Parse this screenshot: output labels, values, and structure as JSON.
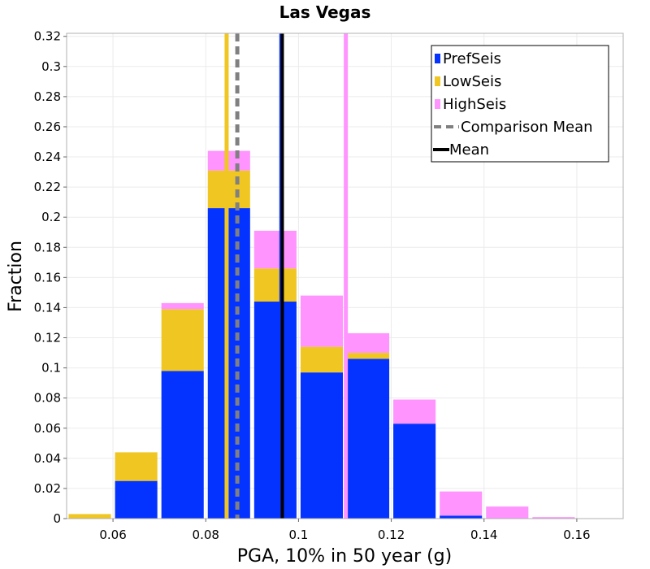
{
  "chart_data": {
    "type": "bar",
    "stacked": true,
    "title": "Las Vegas",
    "xlabel": "PGA, 10% in 50 year (g)",
    "ylabel": "Fraction",
    "xlim": [
      0.05,
      0.17
    ],
    "ylim": [
      0,
      0.322
    ],
    "bin_width": 0.01,
    "x_ticks": [
      0.06,
      0.08,
      0.1,
      0.12,
      0.14,
      0.16
    ],
    "x_tick_labels": [
      "0.06",
      "0.08",
      "0.1",
      "0.12",
      "0.14",
      "0.16"
    ],
    "y_ticks": [
      0,
      0.02,
      0.04,
      0.06,
      0.08,
      0.1,
      0.12,
      0.14,
      0.16,
      0.18,
      0.2,
      0.22,
      0.24,
      0.26,
      0.28,
      0.3,
      0.32
    ],
    "y_tick_labels": [
      "0",
      "0.02",
      "0.04",
      "0.06",
      "0.08",
      "0.1",
      "0.12",
      "0.14",
      "0.16",
      "0.18",
      "0.2",
      "0.22",
      "0.24",
      "0.26",
      "0.28",
      "0.3",
      "0.32"
    ],
    "bin_centers": [
      0.055,
      0.065,
      0.075,
      0.085,
      0.095,
      0.105,
      0.115,
      0.125,
      0.135,
      0.145,
      0.155,
      0.165
    ],
    "series": [
      {
        "name": "PrefSeis",
        "color": "#0433ff",
        "values": [
          0,
          0.025,
          0.098,
          0.206,
          0.144,
          0.097,
          0.106,
          0.063,
          0.002,
          0,
          0,
          0
        ]
      },
      {
        "name": "LowSeis",
        "color": "#f0c622",
        "values": [
          0.003,
          0.019,
          0.041,
          0.025,
          0.022,
          0.017,
          0.004,
          0,
          0,
          0,
          0,
          0
        ]
      },
      {
        "name": "HighSeis",
        "color": "#ff94ff",
        "values": [
          0,
          0,
          0.004,
          0.013,
          0.025,
          0.034,
          0.013,
          0.016,
          0.016,
          0.008,
          0.001,
          0
        ]
      }
    ],
    "lines": [
      {
        "name": "LowSeis mean",
        "x": 0.0845,
        "color": "#f0c622",
        "style": "solid",
        "width": 5
      },
      {
        "name": "Comparison Mean",
        "x": 0.0868,
        "color": "#808080",
        "style": "dashed",
        "width": 5
      },
      {
        "name": "PrefSeis mean",
        "x": 0.0963,
        "color": "#0433ff",
        "style": "solid",
        "width": 5
      },
      {
        "name": "Mean",
        "x": 0.0965,
        "color": "#000000",
        "style": "solid",
        "width": 4
      },
      {
        "name": "HighSeis mean",
        "x": 0.1102,
        "color": "#ff94ff",
        "style": "solid",
        "width": 5
      }
    ],
    "legend": {
      "position": "top-right",
      "entries": [
        {
          "label": "PrefSeis",
          "kind": "patch",
          "color": "#0433ff"
        },
        {
          "label": "LowSeis",
          "kind": "patch",
          "color": "#f0c622"
        },
        {
          "label": "HighSeis",
          "kind": "patch",
          "color": "#ff94ff"
        },
        {
          "label": "Comparison Mean",
          "kind": "dashed-line",
          "color": "#808080"
        },
        {
          "label": "Mean",
          "kind": "line",
          "color": "#000000"
        }
      ]
    },
    "grid": true
  }
}
